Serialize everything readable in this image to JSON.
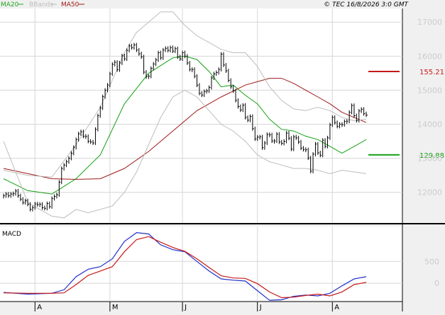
{
  "header": {
    "legend": [
      {
        "label": "MA20",
        "color": "#22a822"
      },
      {
        "label": "BBands",
        "color": "#bdbdbd"
      },
      {
        "label": "MA50",
        "color": "#a01818"
      }
    ],
    "copyright": "© TEC 16/8/2026 3:0 GMT"
  },
  "colors": {
    "background": "#f0f0f0",
    "panel": "#ffffff",
    "grid": "#d6d6d6",
    "axis_text": "#cccccc",
    "price_bars": "#000000",
    "macd_line": "#2030c8",
    "signal_line": "#c81818",
    "resistance": "#c81818",
    "support": "#11a011"
  },
  "chart_data": [
    {
      "type": "line",
      "title": "",
      "x_ticks": [
        "A",
        "M",
        "J",
        "J",
        "A"
      ],
      "x_tick_days": [
        13,
        44,
        74,
        105,
        136
      ],
      "ylim": [
        11100,
        17400
      ],
      "y_ticks": [
        12000,
        13000,
        14000,
        15000,
        16000,
        17000
      ],
      "grid": true,
      "levels": [
        {
          "label": "155.21",
          "value": 15550,
          "color": "#c81818"
        },
        {
          "label": "129.88",
          "value": 13100,
          "color": "#11a011"
        }
      ],
      "series": [
        {
          "name": "MA20",
          "x": [
            0,
            10,
            20,
            30,
            40,
            50,
            60,
            70,
            75,
            80,
            85,
            90,
            95,
            100,
            105,
            110,
            115,
            120,
            125,
            130,
            135,
            140,
            145,
            150
          ],
          "values": [
            12400,
            12050,
            11950,
            12400,
            13100,
            14600,
            15500,
            15950,
            16000,
            15900,
            15550,
            15100,
            15150,
            14850,
            14600,
            14150,
            13850,
            13800,
            13650,
            13550,
            13350,
            13150,
            13350,
            13550
          ]
        },
        {
          "name": "MA50",
          "x": [
            0,
            10,
            20,
            30,
            40,
            50,
            60,
            70,
            80,
            90,
            100,
            105,
            110,
            115,
            120,
            125,
            130,
            135,
            140,
            145,
            150
          ],
          "values": [
            12700,
            12550,
            12400,
            12380,
            12400,
            12700,
            13200,
            13800,
            14400,
            14800,
            15150,
            15250,
            15350,
            15350,
            15200,
            15000,
            14800,
            14600,
            14350,
            14200,
            14050
          ]
        },
        {
          "name": "BBands upper",
          "x": [
            0,
            10,
            20,
            30,
            40,
            50,
            55,
            60,
            65,
            70,
            75,
            80,
            85,
            90,
            95,
            100,
            105,
            110,
            115,
            120,
            125,
            130,
            135,
            140,
            145,
            150
          ],
          "values": [
            12650,
            12500,
            12450,
            13400,
            14500,
            16100,
            16700,
            17000,
            17300,
            17300,
            16900,
            16600,
            16400,
            16200,
            16100,
            16100,
            15700,
            15100,
            14700,
            14450,
            14400,
            14500,
            14400,
            14200,
            14100,
            14150
          ]
        },
        {
          "name": "BBands lower",
          "x": [
            0,
            10,
            20,
            25,
            30,
            35,
            40,
            45,
            50,
            55,
            60,
            65,
            70,
            75,
            80,
            85,
            90,
            95,
            100,
            105,
            110,
            115,
            120,
            125,
            130,
            135,
            140,
            145,
            150
          ],
          "values": [
            13500,
            11700,
            11300,
            11250,
            11500,
            11400,
            11500,
            11600,
            12000,
            12600,
            13400,
            14200,
            14800,
            15000,
            14800,
            14400,
            14000,
            13800,
            13500,
            13100,
            12900,
            12800,
            12700,
            12700,
            12650,
            12550,
            12650,
            12600,
            12550
          ]
        },
        {
          "name": "Price",
          "type": "bars",
          "x": [
            0,
            1,
            2,
            3,
            4,
            5,
            6,
            7,
            8,
            9,
            10,
            11,
            12,
            13,
            14,
            15,
            16,
            17,
            18,
            19,
            20,
            21,
            22,
            23,
            24,
            25,
            26,
            27,
            28,
            29,
            30,
            31,
            32,
            33,
            34,
            35,
            36,
            37,
            38,
            39,
            40,
            41,
            42,
            43,
            44,
            45,
            46,
            47,
            48,
            49,
            50,
            51,
            52,
            53,
            54,
            55,
            56,
            57,
            58,
            59,
            60,
            61,
            62,
            63,
            64,
            65,
            66,
            67,
            68,
            69,
            70,
            71,
            72,
            73,
            74,
            75,
            76,
            77,
            78,
            79,
            80,
            81,
            82,
            83,
            84,
            85,
            86,
            87,
            88,
            89,
            90,
            91,
            92,
            93,
            94,
            95,
            96,
            97,
            98,
            99,
            100,
            101,
            102,
            103,
            104,
            105,
            106,
            107,
            108,
            109,
            110,
            111,
            112,
            113,
            114,
            115,
            116,
            117,
            118,
            119,
            120,
            121,
            122,
            123,
            124,
            125,
            126,
            127,
            128,
            129,
            130,
            131,
            132,
            133,
            134,
            135,
            136,
            137,
            138,
            139,
            140,
            141,
            142,
            143,
            144,
            145,
            146,
            147,
            148,
            149,
            150
          ],
          "values": [
            11900,
            11950,
            11900,
            11950,
            11960,
            12040,
            11900,
            11800,
            11700,
            11750,
            11650,
            11500,
            11550,
            11660,
            11640,
            11650,
            11550,
            11530,
            11670,
            11580,
            11820,
            11880,
            11930,
            12300,
            12700,
            12800,
            12900,
            13000,
            13150,
            13320,
            13550,
            13720,
            13780,
            13650,
            13640,
            13500,
            13480,
            13450,
            13850,
            14250,
            14480,
            14810,
            15000,
            15150,
            15480,
            15760,
            15820,
            15600,
            15800,
            16010,
            15920,
            16170,
            16300,
            16250,
            16330,
            16180,
            16070,
            15980,
            15530,
            15400,
            15410,
            15640,
            15770,
            15890,
            16100,
            15950,
            16180,
            16230,
            16170,
            16250,
            16150,
            16220,
            15980,
            15920,
            16100,
            16000,
            15800,
            15610,
            15610,
            15410,
            15150,
            14910,
            14860,
            14960,
            14980,
            15080,
            15360,
            15480,
            15520,
            15610,
            16060,
            15740,
            15570,
            15290,
            15100,
            14980,
            14700,
            14520,
            14420,
            14560,
            14200,
            14120,
            14230,
            13870,
            13570,
            13620,
            13630,
            13310,
            13450,
            13700,
            13690,
            13510,
            13510,
            13710,
            13480,
            13440,
            13500,
            13740,
            13590,
            13270,
            13630,
            13600,
            13480,
            13300,
            13260,
            13250,
            13010,
            12620,
            13120,
            13420,
            13160,
            13090,
            13530,
            13350,
            13600,
            13980,
            14200,
            14050,
            13940,
            14000,
            13990,
            14080,
            14090,
            14350,
            14550,
            14250,
            14110,
            14390,
            14440,
            14310,
            14270
          ]
        }
      ]
    },
    {
      "type": "line",
      "title": "MACD",
      "ylim": [
        -420,
        1300
      ],
      "y_ticks": [
        0,
        500
      ],
      "series": [
        {
          "name": "MACD",
          "x": [
            0,
            10,
            20,
            25,
            30,
            35,
            40,
            45,
            50,
            55,
            60,
            65,
            70,
            75,
            80,
            85,
            90,
            95,
            100,
            105,
            110,
            115,
            120,
            125,
            130,
            135,
            140,
            145,
            150
          ],
          "values": [
            -210,
            -250,
            -230,
            -150,
            150,
            320,
            380,
            560,
            960,
            1160,
            1130,
            880,
            770,
            720,
            500,
            280,
            100,
            70,
            50,
            -170,
            -390,
            -380,
            -300,
            -270,
            -290,
            -230,
            -60,
            100,
            150
          ]
        },
        {
          "name": "Signal",
          "x": [
            0,
            10,
            20,
            25,
            30,
            35,
            40,
            45,
            50,
            55,
            60,
            65,
            70,
            75,
            80,
            85,
            90,
            95,
            100,
            105,
            110,
            115,
            120,
            125,
            130,
            135,
            140,
            145,
            150
          ],
          "values": [
            -220,
            -230,
            -230,
            -220,
            -30,
            180,
            280,
            380,
            720,
            1000,
            1070,
            940,
            820,
            730,
            560,
            360,
            170,
            120,
            110,
            -10,
            -200,
            -330,
            -320,
            -280,
            -250,
            -290,
            -200,
            -30,
            20
          ]
        }
      ]
    }
  ]
}
